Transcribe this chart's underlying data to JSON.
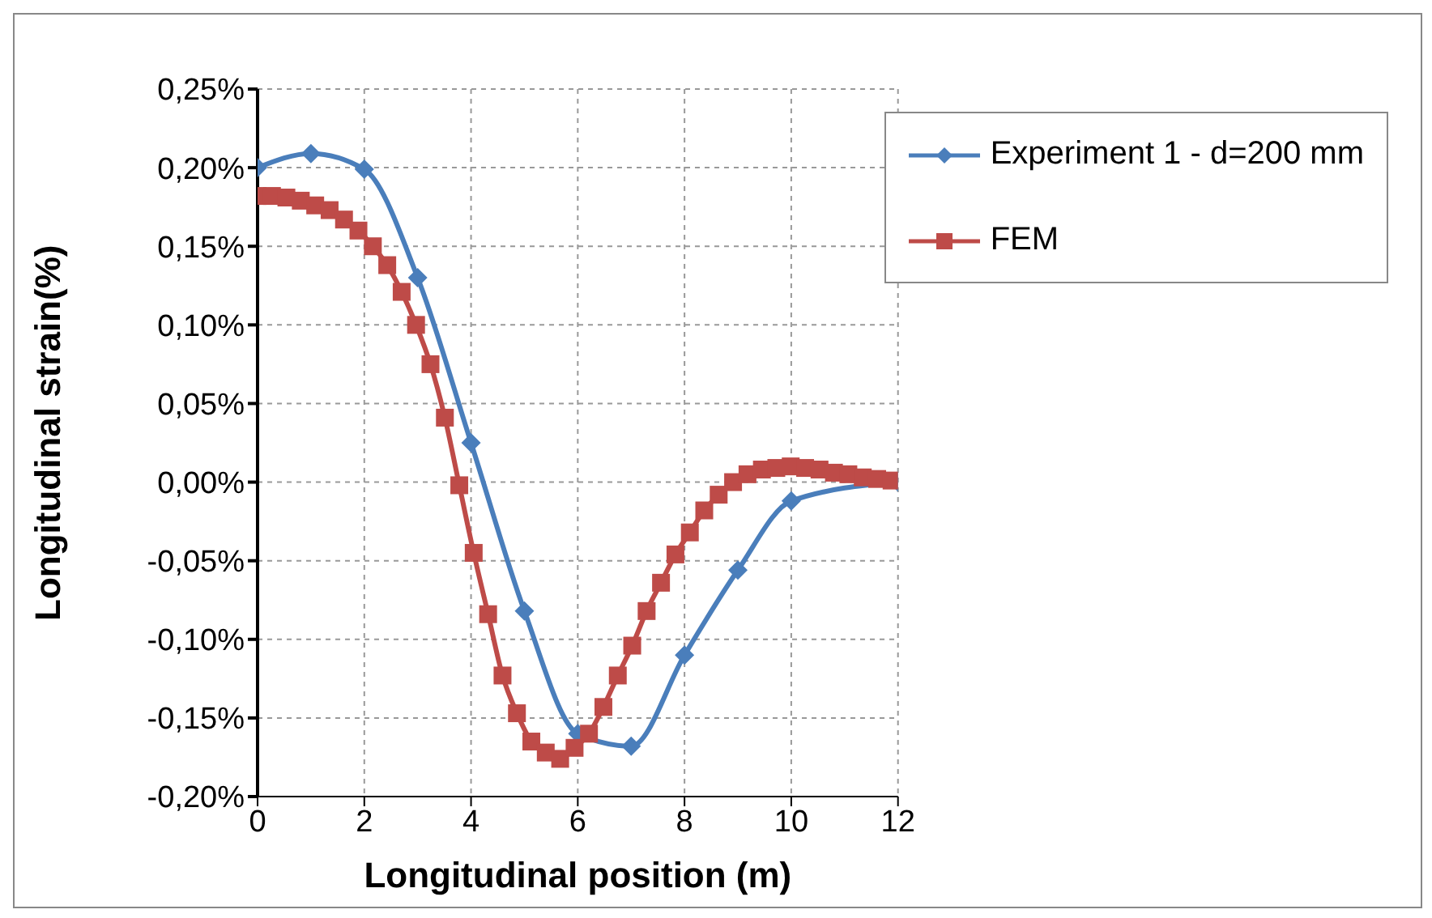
{
  "chart_data": {
    "type": "line",
    "xlabel": "Longitudinal position (m)",
    "ylabel": "Longitudinal strain(%)",
    "xlim": [
      0,
      12
    ],
    "xticks": [
      0,
      2,
      4,
      6,
      8,
      10,
      12
    ],
    "ylim": [
      -0.2,
      0.25
    ],
    "yticks": [
      {
        "value": -0.2,
        "label": "-0,20%"
      },
      {
        "value": -0.15,
        "label": "-0,15%"
      },
      {
        "value": -0.1,
        "label": "-0,10%"
      },
      {
        "value": -0.05,
        "label": "-0,05%"
      },
      {
        "value": 0,
        "label": "0,00%"
      },
      {
        "value": 0.05,
        "label": "0,05%"
      },
      {
        "value": 0.1,
        "label": "0,10%"
      },
      {
        "value": 0.15,
        "label": "0,15%"
      },
      {
        "value": 0.2,
        "label": "0,20%"
      },
      {
        "value": 0.25,
        "label": "0,25%"
      }
    ],
    "grid": true,
    "legend": "top right",
    "series": [
      {
        "name": "Experiment 1 - d=200 mm",
        "color": "#4a7ebb",
        "marker": "diamond",
        "x": [
          0,
          1,
          2,
          3,
          4,
          5,
          6,
          7,
          8,
          9,
          10,
          12
        ],
        "values": [
          0.2,
          0.209,
          0.199,
          0.13,
          0.025,
          -0.082,
          -0.16,
          -0.168,
          -0.11,
          -0.056,
          -0.012,
          0
        ]
      },
      {
        "name": "FEM",
        "color": "#be4b48",
        "marker": "square",
        "x": [
          0,
          0.27,
          0.54,
          0.81,
          1.08,
          1.35,
          1.62,
          1.89,
          2.16,
          2.43,
          2.7,
          2.97,
          3.24,
          3.51,
          3.78,
          4.05,
          4.32,
          4.59,
          4.86,
          5.13,
          5.4,
          5.67,
          5.94,
          6.21,
          6.48,
          6.75,
          7.02,
          7.29,
          7.56,
          7.83,
          8.1,
          8.37,
          8.64,
          8.91,
          9.18,
          9.45,
          9.72,
          9.99,
          10.26,
          10.53,
          10.8,
          11.07,
          11.34,
          11.61,
          11.88
        ],
        "values": [
          0.182,
          0.182,
          0.181,
          0.179,
          0.176,
          0.173,
          0.167,
          0.16,
          0.15,
          0.138,
          0.121,
          0.1,
          0.075,
          0.041,
          -0.002,
          -0.045,
          -0.084,
          -0.123,
          -0.147,
          -0.165,
          -0.172,
          -0.176,
          -0.169,
          -0.16,
          -0.143,
          -0.123,
          -0.104,
          -0.082,
          -0.064,
          -0.046,
          -0.032,
          -0.018,
          -0.008,
          0,
          0.005,
          0.008,
          0.009,
          0.01,
          0.009,
          0.008,
          0.006,
          0.005,
          0.003,
          0.002,
          0.001
        ]
      }
    ]
  }
}
